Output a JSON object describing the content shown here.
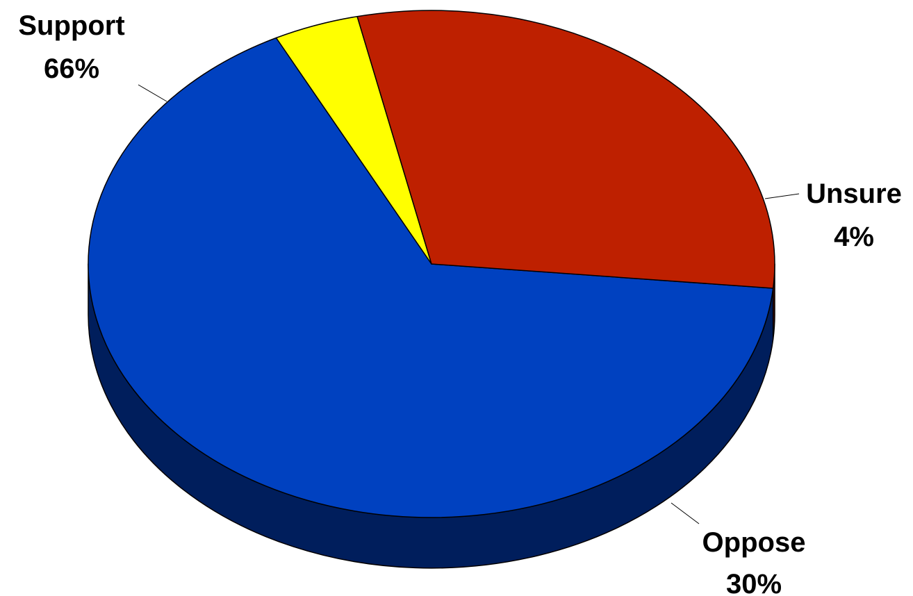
{
  "chart_data": {
    "type": "pie",
    "style": "3d",
    "title": "",
    "legend": "none",
    "slices": [
      {
        "label": "Support",
        "value": 66,
        "value_label": "66%",
        "color": "#0041C0",
        "side_color": "#001E5C"
      },
      {
        "label": "Unsure",
        "value": 4,
        "value_label": "4%",
        "color": "#FFFF00",
        "side_color": "#8A8A00"
      },
      {
        "label": "Oppose",
        "value": 30,
        "value_label": "30%",
        "color": "#BE2000",
        "side_color": "#5C1000"
      }
    ]
  }
}
